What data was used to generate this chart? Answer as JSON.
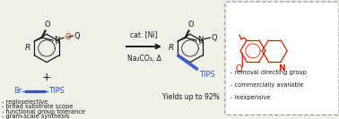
{
  "bg_color": "#f0efe8",
  "arrow_color": "#333333",
  "blue_color": "#3355cc",
  "red_color": "#cc2200",
  "black_color": "#1a1a1a",
  "box_border_color": "#999999",
  "catalyst_text": "cat. [Ni]",
  "base_text": "Na₂CO₃, Δ",
  "yield_text": "Yields up to 92%",
  "bullet1": "- regioselective",
  "bullet2": "- broad substrate scope",
  "bullet3": "- functional group tolerance",
  "bullet4": "- gram-scale synthesis",
  "box_bullet1": "- removal directing group",
  "box_bullet2": "- commercially available",
  "box_bullet3": "- inexpensive"
}
